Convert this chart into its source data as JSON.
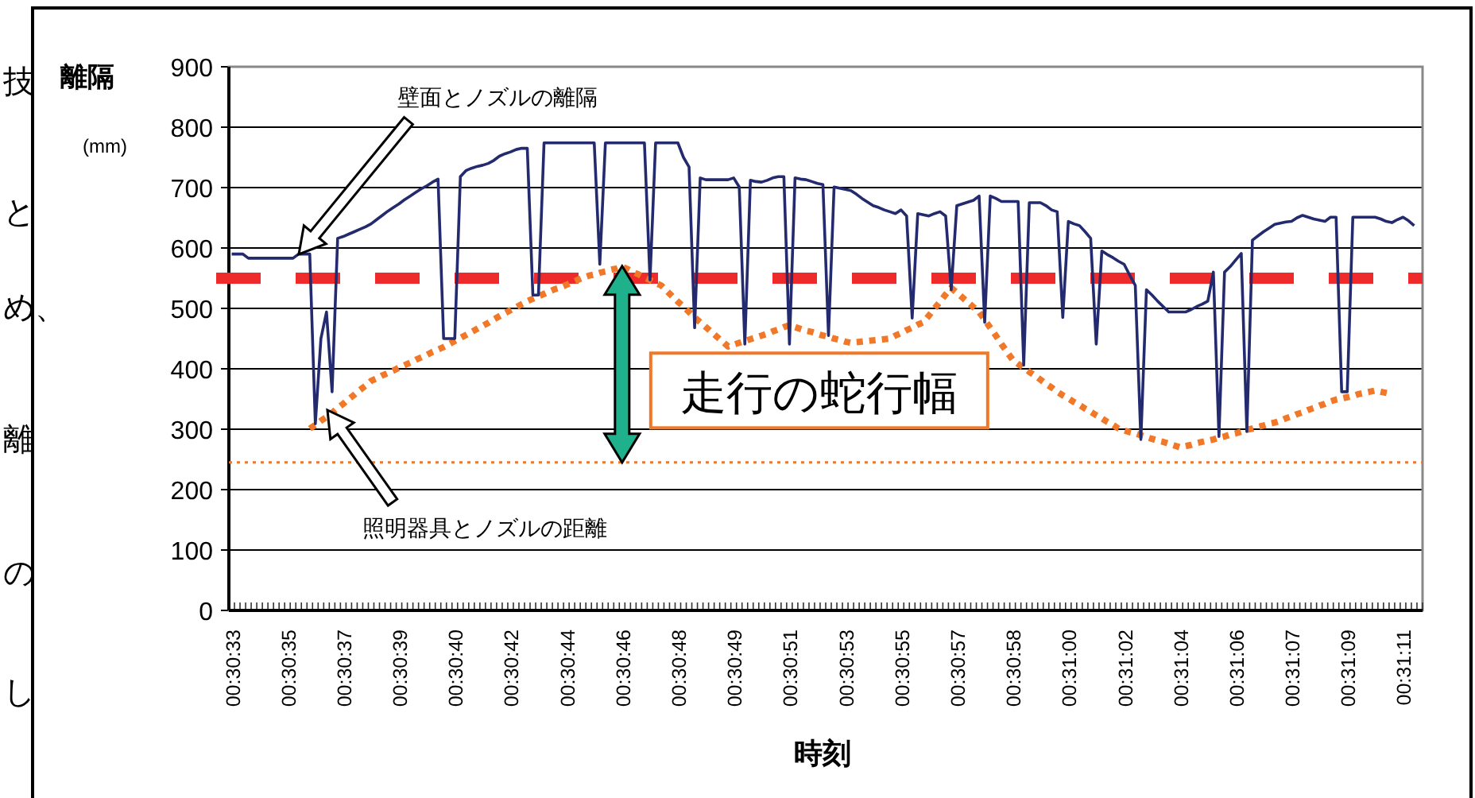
{
  "chart_data": {
    "type": "line",
    "xlabel": "時刻",
    "ylabel": "離隔 (mm)",
    "categories": [
      "00:30:33",
      null,
      null,
      null,
      null,
      null,
      null,
      null,
      null,
      null,
      "00:30:35",
      null,
      null,
      null,
      null,
      null,
      null,
      null,
      null,
      null,
      "00:30:37",
      null,
      null,
      null,
      null,
      null,
      null,
      null,
      null,
      null,
      "00:30:39",
      null,
      null,
      null,
      null,
      null,
      null,
      null,
      null,
      null,
      "00:30:40",
      null,
      null,
      null,
      null,
      null,
      null,
      null,
      null,
      null,
      "00:30:42",
      null,
      null,
      null,
      null,
      null,
      null,
      null,
      null,
      null,
      "00:30:44",
      null,
      null,
      null,
      null,
      null,
      null,
      null,
      null,
      null,
      "00:30:46",
      null,
      null,
      null,
      null,
      null,
      null,
      null,
      null,
      null,
      "00:30:48",
      null,
      null,
      null,
      null,
      null,
      null,
      null,
      null,
      null,
      "00:30:49",
      null,
      null,
      null,
      null,
      null,
      null,
      null,
      null,
      null,
      "00:30:51",
      null,
      null,
      null,
      null,
      null,
      null,
      null,
      null,
      null,
      "00:30:53",
      null,
      null,
      null,
      null,
      null,
      null,
      null,
      null,
      null,
      "00:30:55",
      null,
      null,
      null,
      null,
      null,
      null,
      null,
      null,
      null,
      "00:30:57",
      null,
      null,
      null,
      null,
      null,
      null,
      null,
      null,
      null,
      "00:30:58",
      null,
      null,
      null,
      null,
      null,
      null,
      null,
      null,
      null,
      "00:31:00",
      null,
      null,
      null,
      null,
      null,
      null,
      null,
      null,
      null,
      "00:31:02",
      null,
      null,
      null,
      null,
      null,
      null,
      null,
      null,
      null,
      "00:31:04",
      null,
      null,
      null,
      null,
      null,
      null,
      null,
      null,
      null,
      "00:31:06",
      null,
      null,
      null,
      null,
      null,
      null,
      null,
      null,
      null,
      "00:31:07",
      null,
      null,
      null,
      null,
      null,
      null,
      null,
      null,
      null,
      "00:31:09",
      null,
      null,
      null,
      null,
      null,
      null,
      null,
      null,
      null,
      "00:31:11",
      null,
      null,
      null
    ],
    "ylim": [
      0,
      900
    ],
    "yticks": [
      0,
      100,
      200,
      300,
      400,
      500,
      600,
      700,
      800,
      900
    ],
    "grid": "y",
    "series": [
      {
        "color": "#f07828",
        "line_style": "dotted",
        "values": [
          null,
          null,
          null,
          null,
          null,
          null,
          null,
          null,
          null,
          null,
          null,
          null,
          null,
          null,
          301,
          307,
          314,
          320,
          327,
          335,
          342,
          350,
          357,
          365,
          372,
          380,
          384,
          389,
          393,
          397,
          402,
          406,
          410,
          415,
          419,
          423,
          428,
          432,
          436,
          441,
          446,
          451,
          456,
          461,
          466,
          471,
          476,
          482,
          487,
          492,
          497,
          502,
          507,
          512,
          516,
          520,
          524,
          528,
          532,
          535,
          539,
          543,
          547,
          551,
          554,
          556,
          559,
          561,
          564,
          566,
          569,
          565,
          560,
          556,
          551,
          547,
          542,
          538,
          529,
          520,
          511,
          503,
          494,
          485,
          477,
          469,
          461,
          453,
          445,
          437,
          440,
          443,
          446,
          449,
          452,
          455,
          458,
          462,
          465,
          469,
          472,
          469,
          466,
          463,
          461,
          458,
          455,
          453,
          450,
          448,
          445,
          443,
          444,
          445,
          446,
          447,
          448,
          449,
          450,
          455,
          459,
          464,
          468,
          473,
          477,
          488,
          500,
          511,
          523,
          534,
          526,
          518,
          510,
          502,
          494,
          481,
          468,
          455,
          441,
          428,
          415,
          408,
          402,
          395,
          389,
          382,
          375,
          369,
          362,
          356,
          351,
          345,
          340,
          334,
          329,
          323,
          318,
          312,
          307,
          301,
          298,
          295,
          293,
          290,
          287,
          284,
          281,
          279,
          276,
          273,
          270,
          272,
          274,
          277,
          279,
          281,
          283,
          286,
          288,
          291,
          293,
          296,
          299,
          301,
          304,
          306,
          309,
          311,
          314,
          318,
          321,
          325,
          328,
          332,
          335,
          339,
          342,
          346,
          349,
          351,
          353,
          355,
          358,
          360,
          362,
          364,
          362,
          360,
          358,
          null,
          null,
          null,
          null,
          null
        ]
      },
      {
        "color": "#232a6e",
        "line_style": "solid",
        "values": [
          590,
          590,
          590,
          583,
          583,
          583,
          583,
          583,
          583,
          583,
          583,
          583,
          590,
          590,
          590,
          309,
          450,
          494,
          362,
          616,
          619,
          623,
          627,
          631,
          635,
          640,
          647,
          654,
          661,
          667,
          673,
          680,
          686,
          692,
          698,
          703,
          709,
          714,
          450,
          450,
          450,
          718,
          728,
          732,
          735,
          737,
          740,
          745,
          752,
          756,
          759,
          763,
          765,
          765,
          522,
          522,
          774,
          774,
          774,
          774,
          774,
          774,
          774,
          774,
          774,
          774,
          573,
          774,
          774,
          774,
          774,
          774,
          774,
          774,
          774,
          547,
          774,
          774,
          774,
          774,
          774,
          750,
          734,
          468,
          716,
          713,
          713,
          713,
          713,
          713,
          716,
          701,
          441,
          712,
          710,
          709,
          712,
          716,
          718,
          718,
          441,
          716,
          714,
          713,
          710,
          707,
          705,
          455,
          701,
          699,
          697,
          695,
          689,
          682,
          676,
          670,
          667,
          663,
          660,
          657,
          663,
          653,
          484,
          657,
          655,
          653,
          657,
          660,
          653,
          531,
          670,
          673,
          676,
          679,
          686,
          477,
          686,
          682,
          677,
          677,
          677,
          677,
          406,
          675,
          675,
          675,
          670,
          663,
          660,
          485,
          644,
          640,
          637,
          627,
          616,
          441,
          595,
          589,
          584,
          578,
          573,
          555,
          538,
          283,
          531,
          522,
          512,
          503,
          494,
          494,
          494,
          494,
          498,
          503,
          507,
          512,
          560,
          288,
          560,
          569,
          580,
          591,
          296,
          613,
          620,
          627,
          633,
          639,
          641,
          643,
          644,
          650,
          654,
          651,
          648,
          646,
          644,
          651,
          651,
          362,
          362,
          651,
          651,
          651,
          651,
          651,
          648,
          644,
          642,
          647,
          651,
          645,
          637,
          null
        ]
      }
    ],
    "ref_lines": [
      {
        "axis": "y",
        "value": 245,
        "color": "#f07828",
        "line_style": "dotted"
      },
      {
        "axis": "y",
        "value": 550,
        "color": "#ee2a2a",
        "line_style": "dashed"
      }
    ],
    "annotations": [
      "壁面とノズルの離隔",
      "照明器具とノズルの距離",
      {
        "text": "走行の蛇行幅",
        "x": "00:30:46",
        "y": 570
      },
      "技",
      "と",
      "め、",
      "離",
      "の",
      "し"
    ]
  }
}
